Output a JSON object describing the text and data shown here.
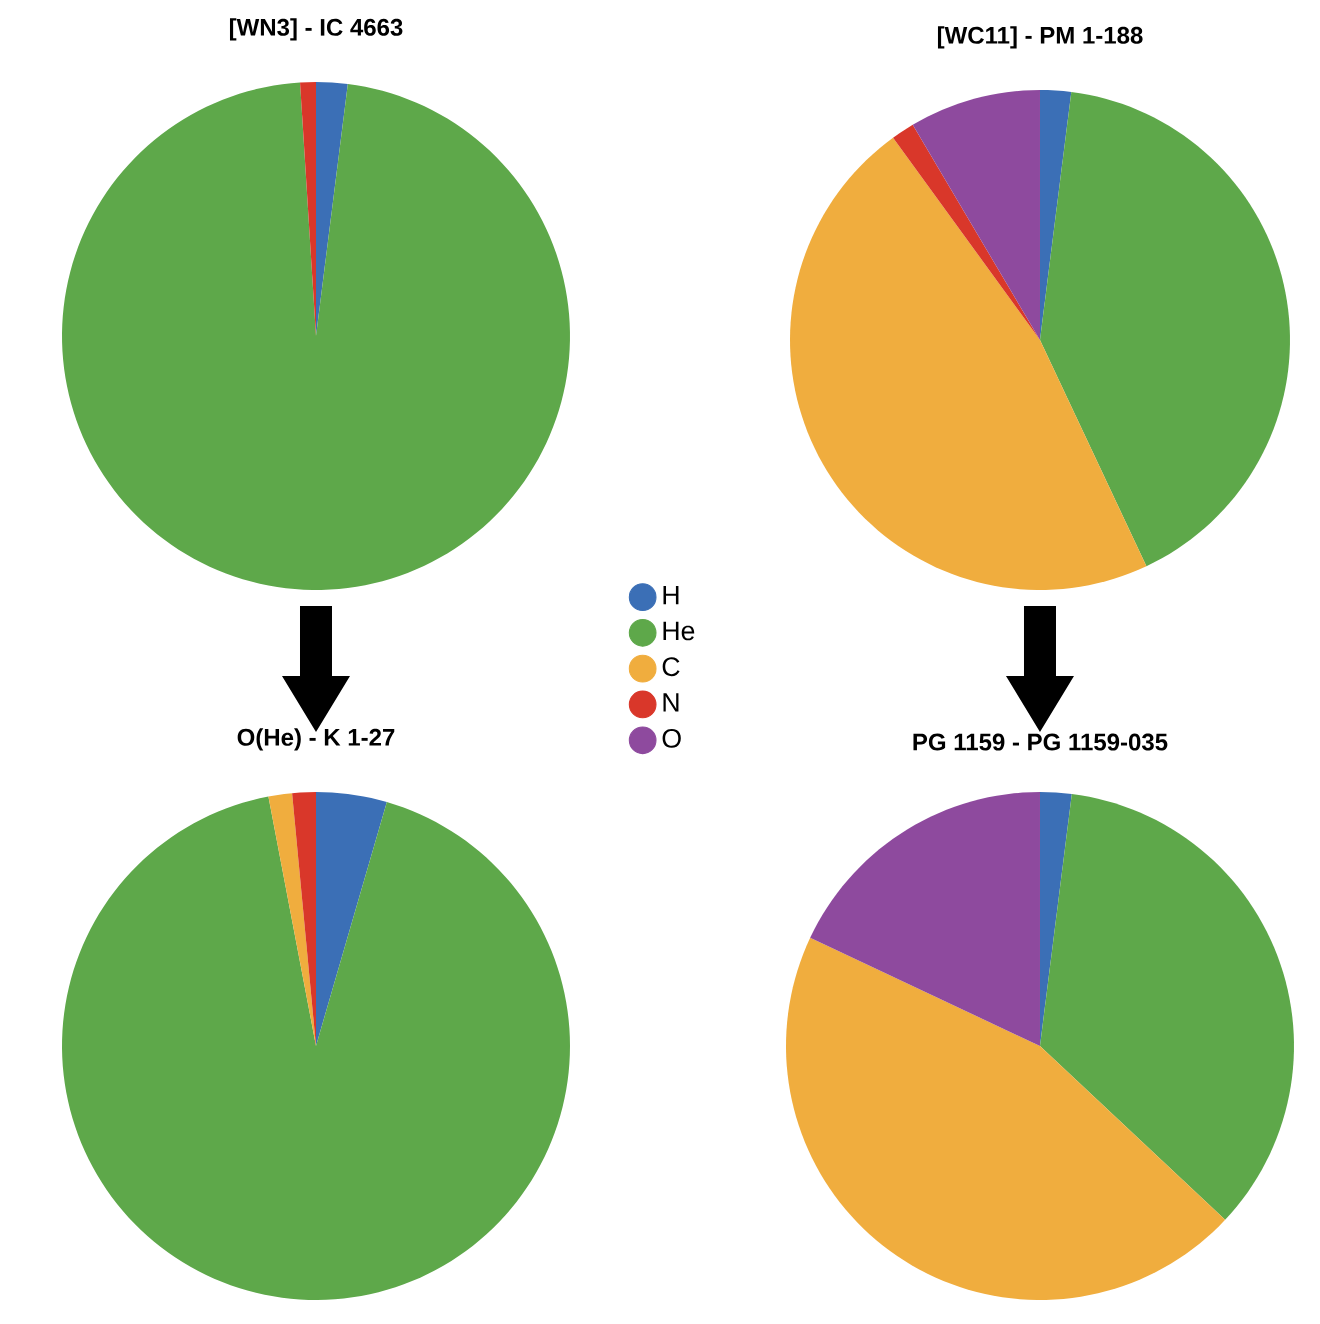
{
  "chart_data": [
    {
      "type": "pie",
      "title": "[WN3] - IC 4663",
      "categories": [
        "H",
        "He",
        "C",
        "N",
        "O"
      ],
      "values": [
        2,
        97,
        0,
        1,
        0
      ],
      "colors": [
        "#3b6fb6",
        "#5ea84a",
        "#f0ad3e",
        "#d9372a",
        "#8e4a9e"
      ],
      "legend": "right"
    },
    {
      "type": "pie",
      "title": "[WC11] - PM 1-188",
      "categories": [
        null,
        null,
        null,
        null,
        null
      ],
      "values": [
        2,
        41,
        47,
        1.5,
        8.5
      ],
      "colors": [
        "#3b6fb6",
        "#5ea84a",
        "#f0ad3e",
        "#d9372a",
        "#8e4a9e"
      ]
    },
    {
      "type": "pie",
      "title": "O(He) - K 1-27",
      "categories": [
        null,
        null,
        null,
        null,
        null
      ],
      "values": [
        4.5,
        92.5,
        1.5,
        1.5,
        0
      ],
      "colors": [
        "#3b6fb6",
        "#5ea84a",
        "#f0ad3e",
        "#d9372a",
        "#8e4a9e"
      ]
    },
    {
      "type": "pie",
      "title": "PG 1159 - PG 1159-035",
      "categories": [
        null,
        null,
        null,
        null,
        null
      ],
      "values": [
        2,
        35,
        45,
        0,
        18
      ],
      "colors": [
        "#3b6fb6",
        "#5ea84a",
        "#f0ad3e",
        "#d9372a",
        "#8e4a9e"
      ]
    }
  ]
}
